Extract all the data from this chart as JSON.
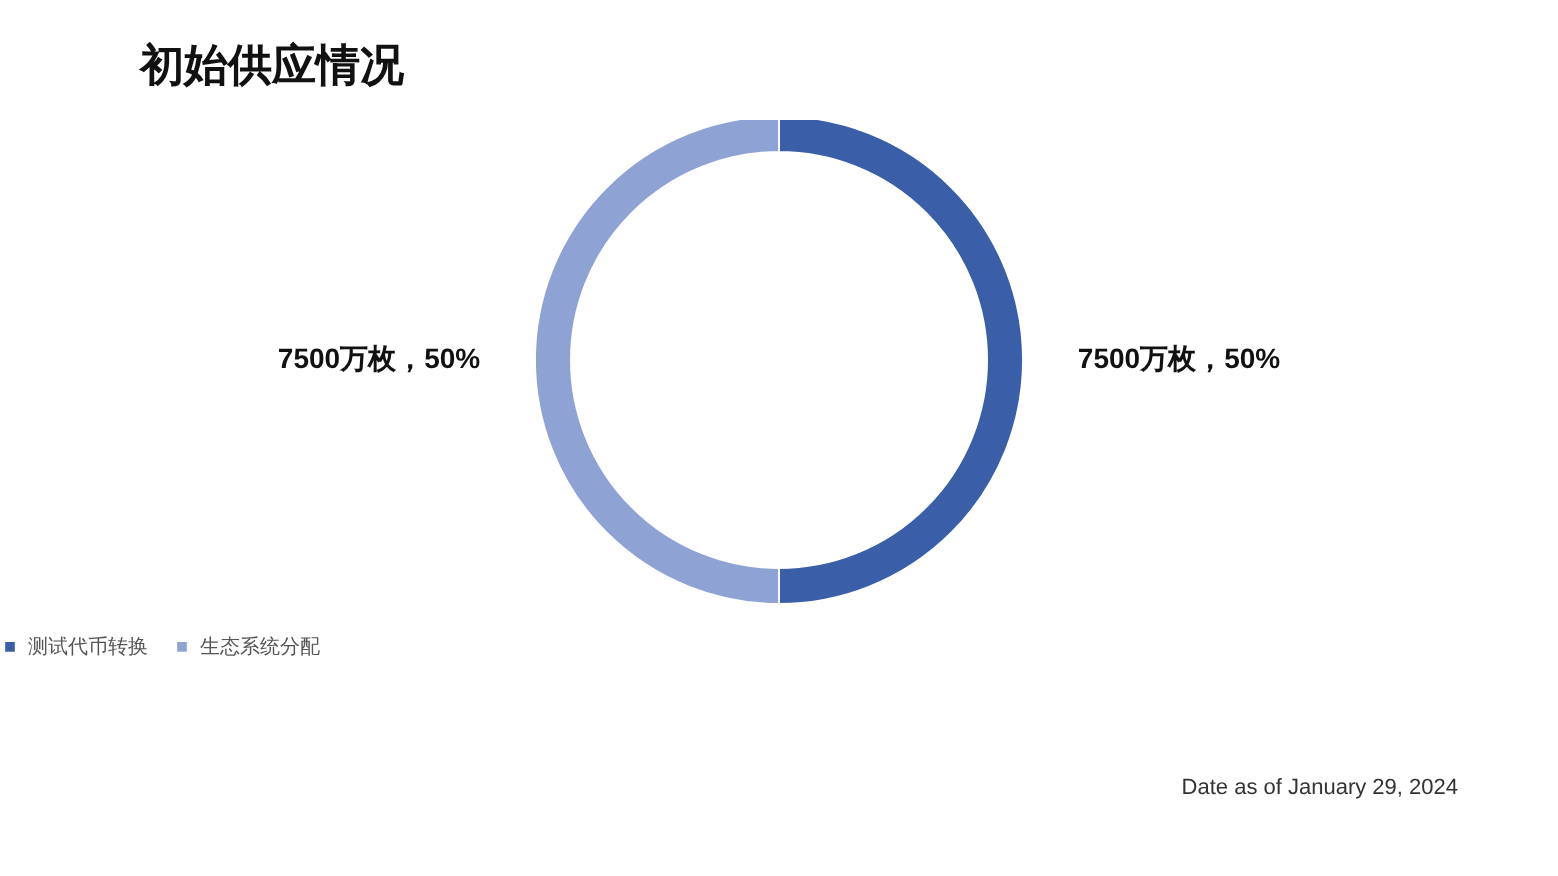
{
  "chart_data": {
    "type": "donut",
    "title": "初始供应情况",
    "categories": [
      "测试代币转换",
      "生态系统分配"
    ],
    "values": [
      50,
      50
    ],
    "value_labels": [
      "7500万枚，50%",
      "7500万枚，50%"
    ],
    "colors": [
      "#3a5fa8",
      "#8ea2d4"
    ],
    "legend": "bottom",
    "annotations": [
      "Date as of January 29, 2024"
    ]
  }
}
